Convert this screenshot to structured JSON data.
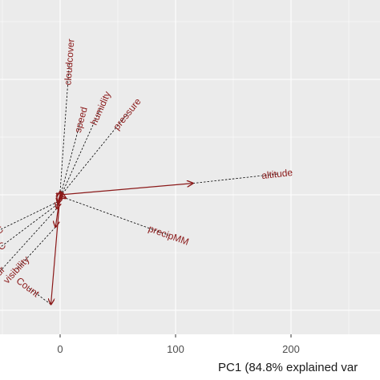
{
  "chart_data": {
    "type": "scatter",
    "title": "",
    "xlabel": "PC1 (84.8% explained var",
    "ylabel": "",
    "x_ticks": [
      0,
      100,
      200
    ],
    "grid": true,
    "legend": "none",
    "colors": {
      "panel": "#ebebeb",
      "grid_major": "#ffffff",
      "arrow": "#8b1a1a",
      "label": "#8b1a1a",
      "connector": "#000000"
    },
    "loadings": [
      {
        "name": "altitude",
        "arrow": [
          115,
          10
        ],
        "label": [
          188,
          18
        ]
      },
      {
        "name": "precipMM",
        "arrow": [
          5,
          -3
        ],
        "label": [
          94,
          -35
        ]
      },
      {
        "name": "cloudcover",
        "arrow": [
          0,
          3
        ],
        "label": [
          8,
          115
        ]
      },
      {
        "name": "speed",
        "arrow": [
          1,
          2
        ],
        "label": [
          18,
          65
        ]
      },
      {
        "name": "humidity",
        "arrow": [
          2,
          2
        ],
        "label": [
          35,
          75
        ]
      },
      {
        "name": "pressure",
        "arrow": [
          2,
          1
        ],
        "label": [
          58,
          70
        ]
      },
      {
        "name": "Count",
        "arrow": [
          -8,
          -95
        ],
        "label": [
          -28,
          -80
        ]
      },
      {
        "name": "visibility",
        "arrow": [
          -4,
          -28
        ],
        "label": [
          -38,
          -65
        ]
      },
      {
        "name": "sunHour",
        "arrow": [
          -3,
          -12
        ],
        "label": [
          -60,
          -75
        ]
      },
      {
        "name": "tempC",
        "arrow": [
          -2,
          -8
        ],
        "label": [
          -58,
          -50
        ]
      },
      {
        "name": "maxtempC",
        "arrow": [
          -2,
          -6
        ],
        "label": [
          -68,
          -38
        ]
      }
    ]
  }
}
